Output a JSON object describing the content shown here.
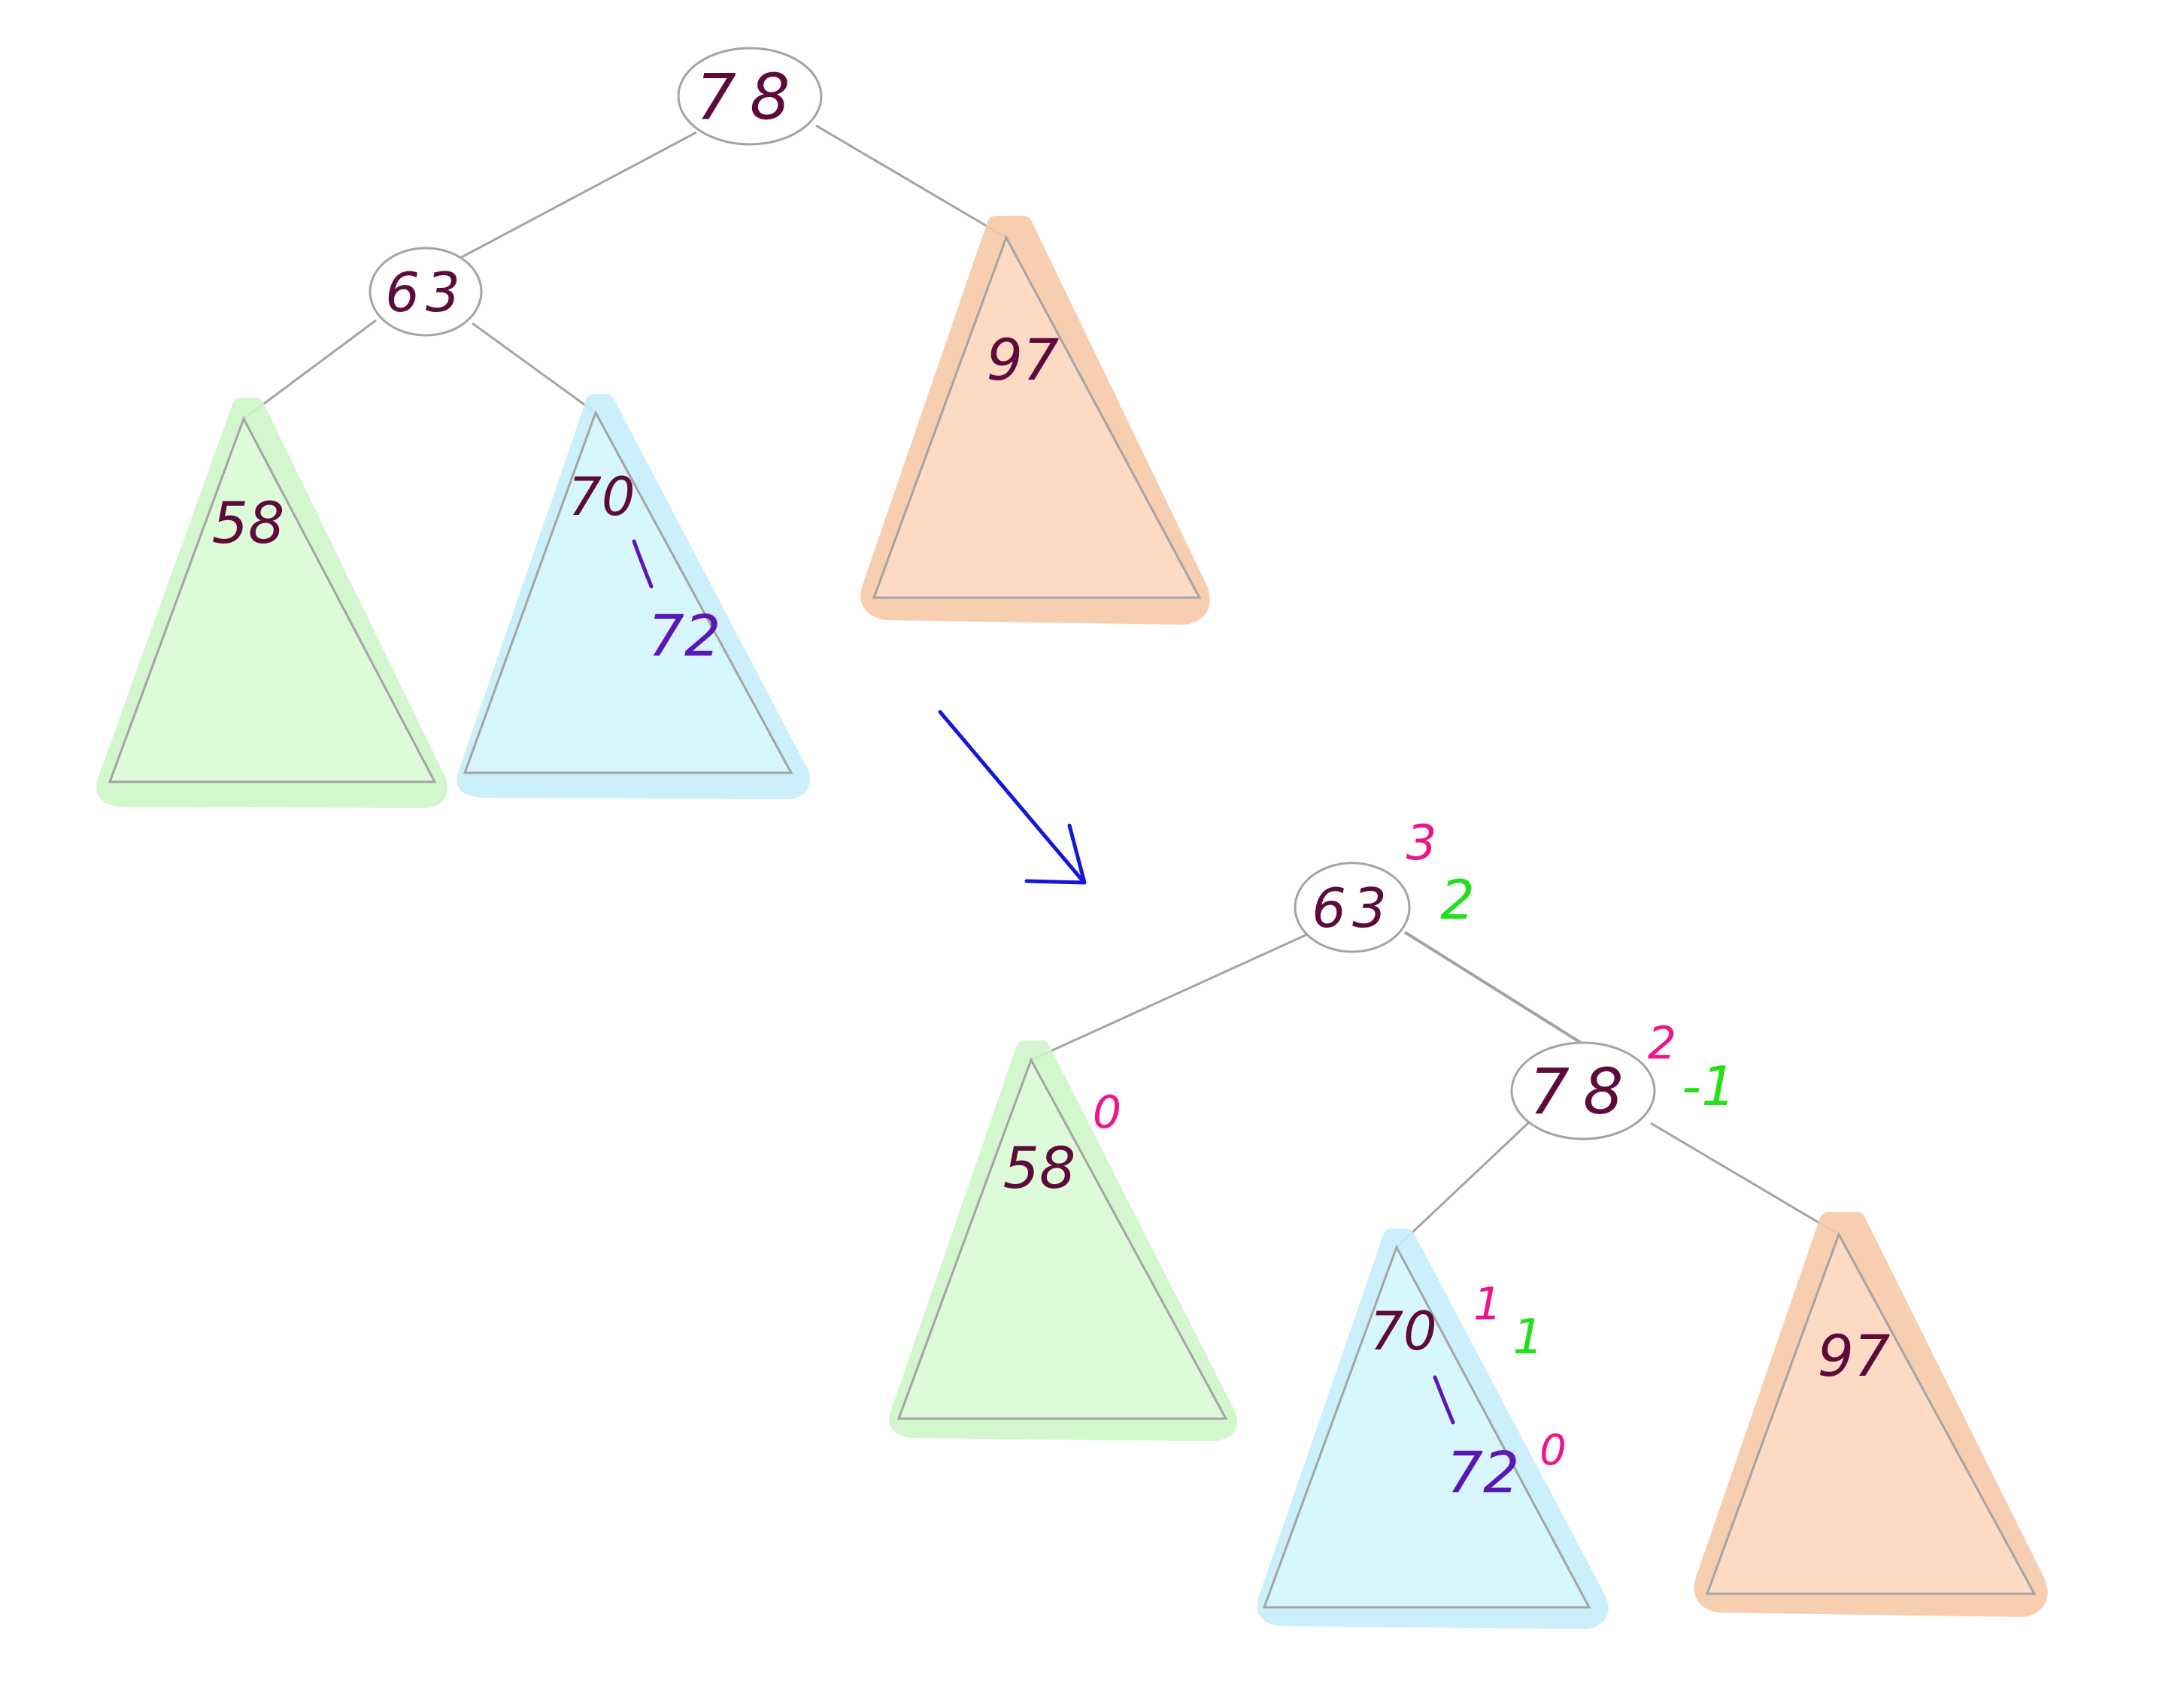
{
  "colors": {
    "background": "#ffffff",
    "line": "#a4a4a4",
    "node_text": "#5e0b3c",
    "child_text": "#5b17b6",
    "height_annotation": "#f0148a",
    "balance_annotation": "#22e11a",
    "arrow": "#1418d6",
    "green_fill": "#ddfbd9",
    "green_glow": "#cff6c9",
    "blue_fill": "#d8f6fd",
    "blue_glow": "#c6eefb",
    "orange_fill": "#fcdac3",
    "orange_glow": "#f8c9a9"
  },
  "before": {
    "root": {
      "label": "78"
    },
    "left_child": {
      "label": "63"
    },
    "subtree_left_left": {
      "label": "58"
    },
    "subtree_left_right": {
      "label": "70",
      "child_label": "72"
    },
    "subtree_right": {
      "label": "97"
    }
  },
  "arrow": {
    "icon": "arrow-down-right-icon"
  },
  "after": {
    "root": {
      "label": "63",
      "height": "3",
      "balance": "2"
    },
    "right_child": {
      "label": "78",
      "height": "2",
      "balance": "-1"
    },
    "subtree_left": {
      "label": "58",
      "height": "0"
    },
    "subtree_right_left": {
      "label": "70",
      "child_label": "72",
      "height": "1",
      "balance": "1",
      "child_height": "0"
    },
    "subtree_right_right": {
      "label": "97"
    }
  }
}
